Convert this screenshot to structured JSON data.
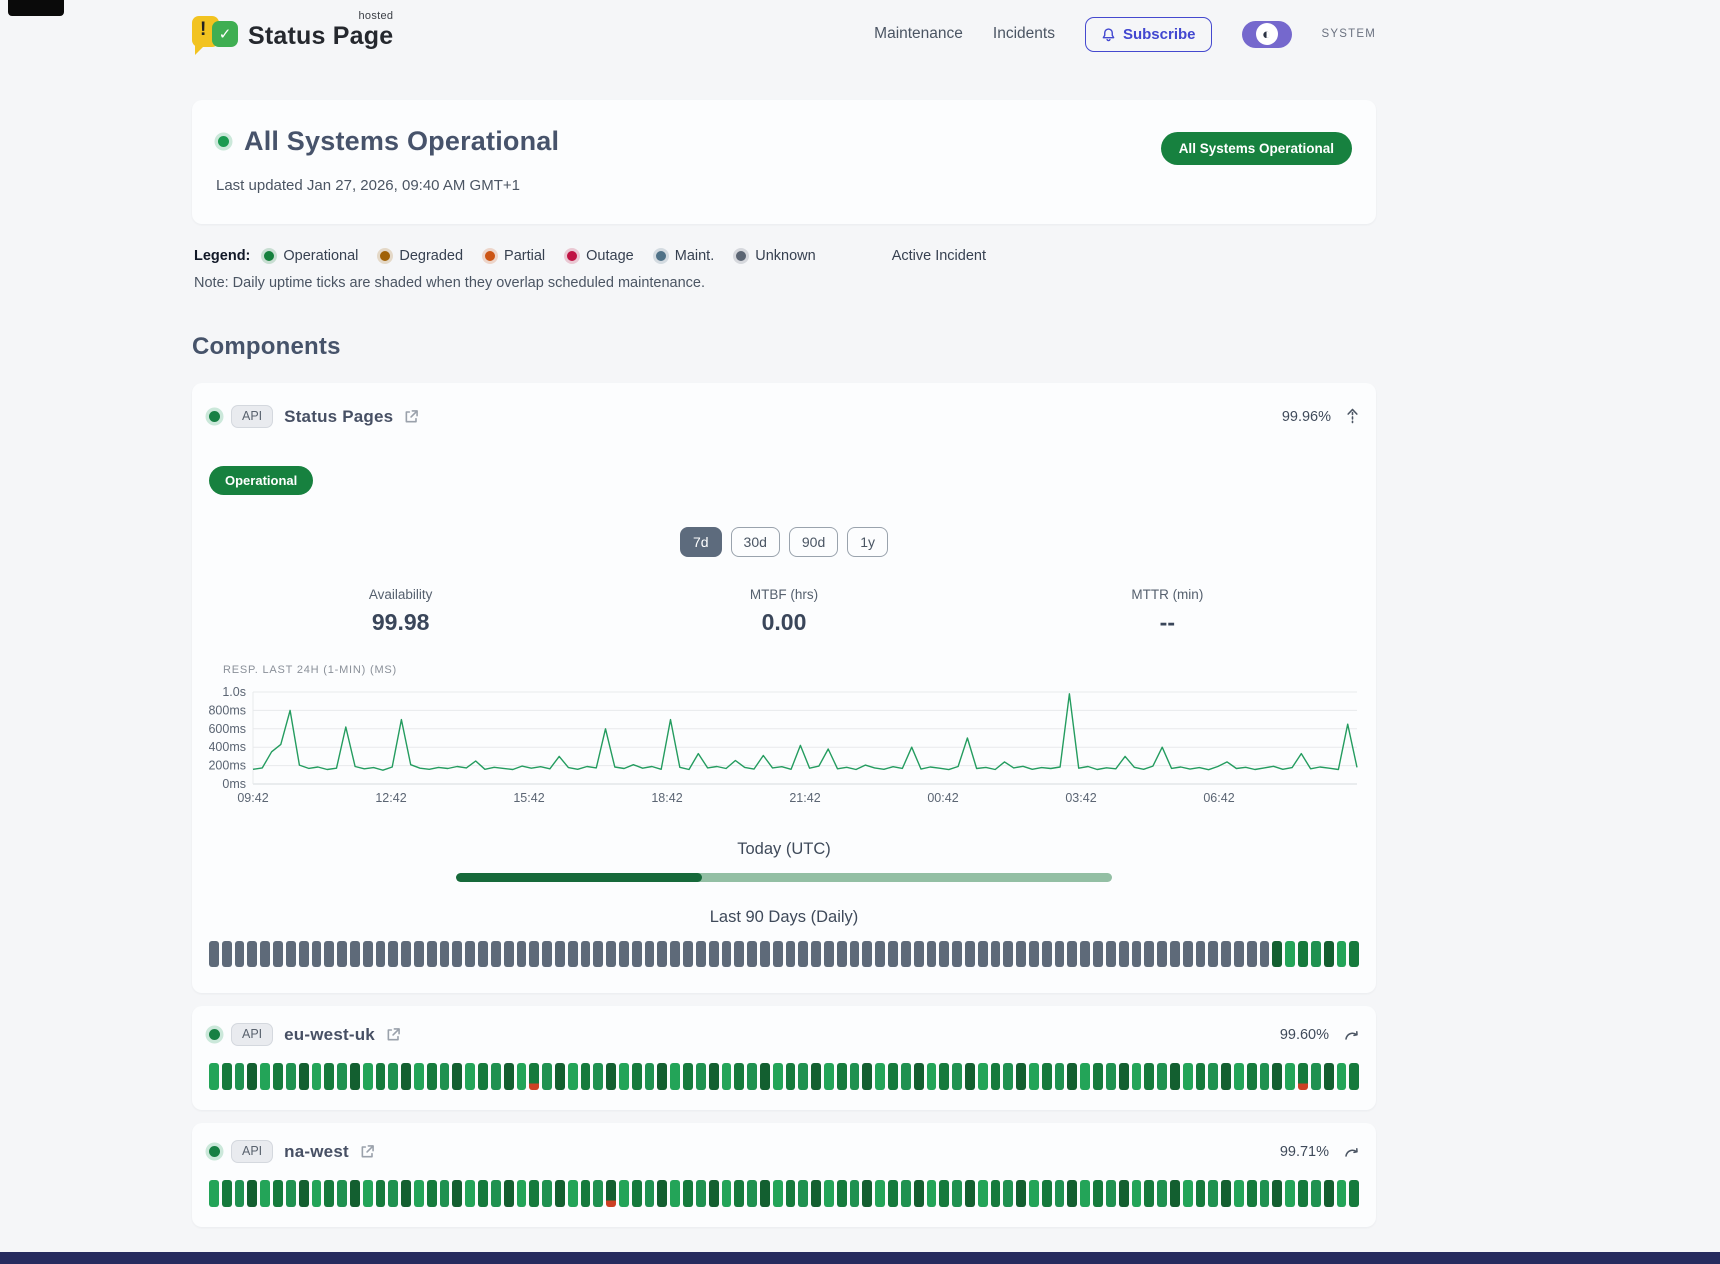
{
  "header": {
    "brand": {
      "name": "Status Page",
      "superscript": "hosted",
      "icon": "chat-bubble-alert-check"
    },
    "nav": [
      {
        "label": "Maintenance"
      },
      {
        "label": "Incidents"
      }
    ],
    "subscribe_label": "Subscribe",
    "theme_toggle": {
      "label": "SYSTEM",
      "icon": "contrast-half-circle",
      "color": "#7568cd"
    }
  },
  "hero": {
    "title": "All Systems Operational",
    "last_updated": "Last updated Jan 27, 2026, 09:40 AM GMT+1",
    "badge": "All Systems Operational",
    "status_color": "#1a9a50"
  },
  "legend": {
    "label": "Legend:",
    "items": [
      {
        "label": "Operational",
        "color": "#15803d"
      },
      {
        "label": "Degraded",
        "color": "#a16207"
      },
      {
        "label": "Partial",
        "color": "#cc5414"
      },
      {
        "label": "Outage",
        "color": "#c01243"
      },
      {
        "label": "Maint.",
        "color": "#4f7187"
      },
      {
        "label": "Unknown",
        "color": "#5b6573"
      }
    ],
    "active_incident_label": "Active Incident",
    "note": "Note: Daily uptime ticks are shaded when they overlap scheduled maintenance."
  },
  "components_title": "Components",
  "range_buttons": [
    {
      "label": "7d",
      "active": true
    },
    {
      "label": "30d",
      "active": false
    },
    {
      "label": "90d",
      "active": false
    },
    {
      "label": "1y",
      "active": false
    }
  ],
  "stats": [
    {
      "label": "Availability",
      "value": "99.98"
    },
    {
      "label": "MTBF (hrs)",
      "value": "0.00"
    },
    {
      "label": "MTTR (min)",
      "value": "--"
    }
  ],
  "chart_data": {
    "type": "line",
    "title": "RESP. LAST 24H (1-MIN) (MS)",
    "series_name": "response-time-ms",
    "ylim": [
      0,
      1000
    ],
    "grid": true,
    "line_color": "#249c5f",
    "y_ticks": [
      {
        "value": 1000,
        "label": "1.0s"
      },
      {
        "value": 800,
        "label": "800ms"
      },
      {
        "value": 600,
        "label": "600ms"
      },
      {
        "value": 400,
        "label": "400ms"
      },
      {
        "value": 200,
        "label": "200ms"
      },
      {
        "value": 0,
        "label": "0ms"
      }
    ],
    "x_span_hours": 24,
    "x_ticks": [
      {
        "hour": 0,
        "label": "09:42"
      },
      {
        "hour": 3,
        "label": "12:42"
      },
      {
        "hour": 6,
        "label": "15:42"
      },
      {
        "hour": 9,
        "label": "18:42"
      },
      {
        "hour": 12,
        "label": "21:42"
      },
      {
        "hour": 15,
        "label": "00:42"
      },
      {
        "hour": 18,
        "label": "03:42"
      },
      {
        "hour": 21,
        "label": "06:42"
      }
    ],
    "values": [
      160,
      175,
      350,
      430,
      800,
      205,
      170,
      185,
      158,
      172,
      620,
      190,
      165,
      178,
      150,
      185,
      700,
      210,
      172,
      160,
      180,
      168,
      190,
      175,
      250,
      160,
      182,
      170,
      158,
      195,
      172,
      188,
      165,
      300,
      178,
      160,
      190,
      175,
      600,
      185,
      168,
      210,
      172,
      190,
      160,
      700,
      182,
      158,
      330,
      175,
      190,
      168,
      255,
      180,
      162,
      310,
      175,
      188,
      160,
      420,
      172,
      195,
      380,
      165,
      182,
      158,
      205,
      175,
      160,
      188,
      170,
      400,
      162,
      185,
      172,
      156,
      190,
      500,
      168,
      180,
      158,
      240,
      175,
      192,
      160,
      178,
      168,
      185,
      980,
      172,
      190,
      158,
      176,
      165,
      300,
      182,
      160,
      195,
      400,
      170,
      185,
      162,
      178,
      155,
      190,
      240,
      168,
      182,
      158,
      175,
      192,
      160,
      178,
      330,
      165,
      185,
      172,
      158,
      650,
      180
    ]
  },
  "today_utc": {
    "label": "Today (UTC)",
    "progress_pct": 37.5,
    "fill_color": "#16693a",
    "track_color": "#93bfa4"
  },
  "last90_label": "Last 90 Days (Daily)",
  "day_codes": {
    "o": "operational",
    "u": "unknown",
    "p": "operational-partial-overlap"
  },
  "components": [
    {
      "tag": "API",
      "name": "Status Pages",
      "uptime": "99.96%",
      "status_badge": "Operational",
      "expanded": true,
      "days": "uuuuuuuuuuuuuuuuuuuuuuuuuuuuuuuuuuuuuuuuuuuuuuuuuuuuuuuuuuuuuuuuuuuuuuuuuuuuuuuuuuuooooooo"
    },
    {
      "tag": "API",
      "name": "eu-west-uk",
      "uptime": "99.60%",
      "expanded": false,
      "days": "ooooooooooooooooooooooooopooooooooooooooooooooooooooooooooooooooooooooooooooooooooooopoooo"
    },
    {
      "tag": "API",
      "name": "na-west",
      "uptime": "99.71%",
      "expanded": false,
      "days": "ooooooooooooooooooooooooooooooopoooooooooooooooooooooooooooooooooooooooooooooooooooooooooo"
    }
  ]
}
